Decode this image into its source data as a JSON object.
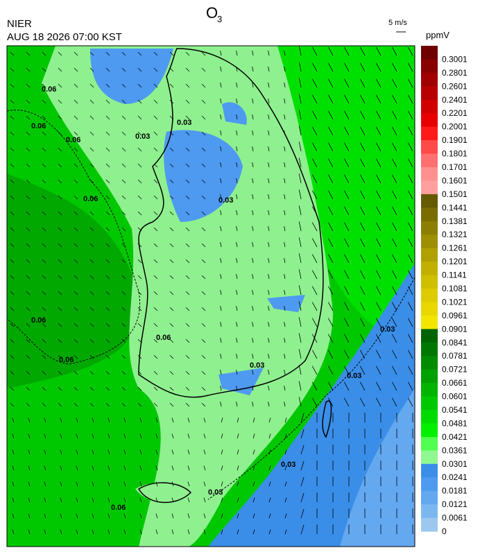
{
  "header": {
    "title": {
      "base": "O",
      "subscript": "3"
    },
    "agency": "NIER",
    "timestamp": "AUG 18 2026 07:00 KST",
    "wind_scale": "5 m/s"
  },
  "colorbar": {
    "unit": "ppmV",
    "labels": [
      "0.3001",
      "0.2801",
      "0.2601",
      "0.2401",
      "0.2201",
      "0.2001",
      "0.1901",
      "0.1801",
      "0.1701",
      "0.1601",
      "0.1501",
      "0.1441",
      "0.1381",
      "0.1321",
      "0.1261",
      "0.1201",
      "0.1141",
      "0.1081",
      "0.1021",
      "0.0961",
      "0.0901",
      "0.0841",
      "0.0781",
      "0.0721",
      "0.0661",
      "0.0601",
      "0.0541",
      "0.0481",
      "0.0421",
      "0.0361",
      "0.0301",
      "0.0241",
      "0.0181",
      "0.0121",
      "0.0061",
      "0"
    ],
    "colors": [
      "#6e0000",
      "#880000",
      "#a00000",
      "#b80000",
      "#d00000",
      "#e80000",
      "#ff1a1a",
      "#ff4a4a",
      "#ff7070",
      "#ff9090",
      "#ffa0a0",
      "#665a00",
      "#7a6d00",
      "#8c7e00",
      "#9e8f00",
      "#b0a000",
      "#c2b000",
      "#d0be00",
      "#dccc00",
      "#e8d800",
      "#f2e600",
      "#006400",
      "#007800",
      "#008c00",
      "#00a000",
      "#00b400",
      "#00c800",
      "#00dc00",
      "#00f000",
      "#50ff50",
      "#90f890",
      "#3a8ee8",
      "#4e9af0",
      "#64a8f0",
      "#7cb8f0",
      "#9cc8f0"
    ]
  },
  "map": {
    "contour_labels": [
      "0.06",
      "0.06",
      "0.06",
      "0.06",
      "0.06",
      "0.06",
      "0.06",
      "0.03",
      "0.03",
      "0.03",
      "0.03",
      "0.03",
      "0.03",
      "0.03",
      "0.03",
      "0.06"
    ]
  }
}
